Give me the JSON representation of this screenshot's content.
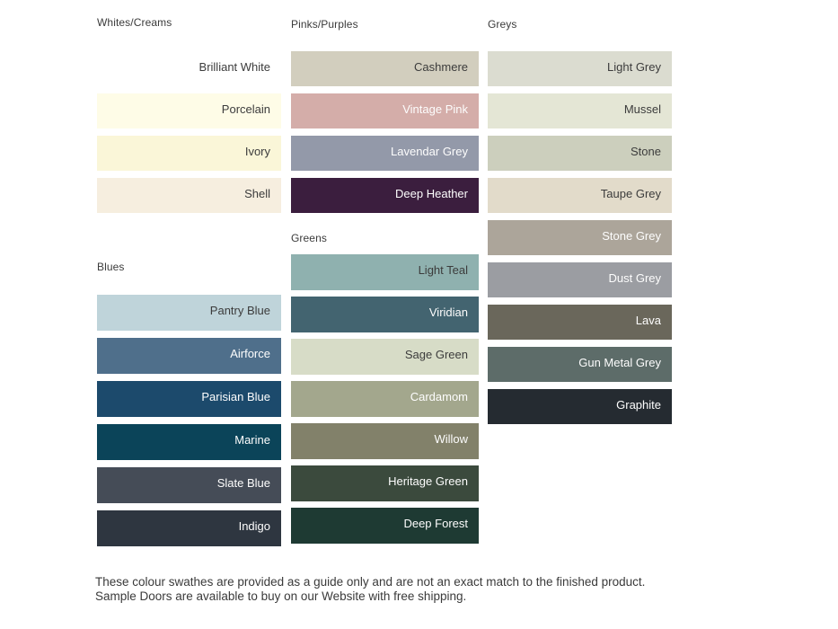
{
  "palette": {
    "background": "#ffffff",
    "label_dark": "#3c3c3c",
    "label_light": "#fdfdfd",
    "header_text": "#3b3b3b"
  },
  "sections": {
    "whites": {
      "title": "Whites/Creams",
      "swatches": [
        {
          "name": "Brilliant White",
          "color": "#ffffff",
          "text": "dark"
        },
        {
          "name": "Porcelain",
          "color": "#fefce7",
          "text": "dark"
        },
        {
          "name": "Ivory",
          "color": "#faf6d8",
          "text": "dark"
        },
        {
          "name": "Shell",
          "color": "#f6eedf",
          "text": "dark"
        }
      ]
    },
    "blues": {
      "title": "Blues",
      "swatches": [
        {
          "name": "Pantry Blue",
          "color": "#bfd4da",
          "text": "dark"
        },
        {
          "name": "Airforce",
          "color": "#4f6f8b",
          "text": "light"
        },
        {
          "name": "Parisian Blue",
          "color": "#1c4a6c",
          "text": "light"
        },
        {
          "name": "Marine",
          "color": "#0b4459",
          "text": "light"
        },
        {
          "name": "Slate Blue",
          "color": "#454c57",
          "text": "light"
        },
        {
          "name": "Indigo",
          "color": "#2e3640",
          "text": "light"
        }
      ]
    },
    "pinks": {
      "title": "Pinks/Purples",
      "swatches": [
        {
          "name": "Cashmere",
          "color": "#d2cebe",
          "text": "dark"
        },
        {
          "name": "Vintage Pink",
          "color": "#d4ada9",
          "text": "light"
        },
        {
          "name": "Lavendar Grey",
          "color": "#9399a9",
          "text": "light"
        },
        {
          "name": "Deep Heather",
          "color": "#3b1e3e",
          "text": "light"
        }
      ]
    },
    "greens": {
      "title": "Greens",
      "swatches": [
        {
          "name": "Light Teal",
          "color": "#8fb1af",
          "text": "dark"
        },
        {
          "name": "Viridian",
          "color": "#436470",
          "text": "light"
        },
        {
          "name": "Sage Green",
          "color": "#d7dcc7",
          "text": "dark"
        },
        {
          "name": "Cardamom",
          "color": "#a3a78d",
          "text": "light"
        },
        {
          "name": "Willow",
          "color": "#82816a",
          "text": "light"
        },
        {
          "name": "Heritage Green",
          "color": "#3b4a3d",
          "text": "light"
        },
        {
          "name": "Deep Forest",
          "color": "#1e3a33",
          "text": "light"
        }
      ]
    },
    "greys": {
      "title": "Greys",
      "swatches": [
        {
          "name": "Light Grey",
          "color": "#dbdcd0",
          "text": "dark"
        },
        {
          "name": "Mussel",
          "color": "#e4e6d5",
          "text": "dark"
        },
        {
          "name": "Stone",
          "color": "#cccfbd",
          "text": "dark"
        },
        {
          "name": "Taupe Grey",
          "color": "#e2dbca",
          "text": "dark"
        },
        {
          "name": "Stone Grey",
          "color": "#aca59a",
          "text": "light"
        },
        {
          "name": "Dust Grey",
          "color": "#9b9da2",
          "text": "light"
        },
        {
          "name": "Lava",
          "color": "#6a675b",
          "text": "light"
        },
        {
          "name": "Gun Metal Grey",
          "color": "#5d6c69",
          "text": "light"
        },
        {
          "name": "Graphite",
          "color": "#252b31",
          "text": "light"
        }
      ]
    }
  },
  "footer": {
    "note": "These colour swathes are provided as a guide only and are not an exact match to the finished product.  Sample Doors are available to buy on our Website with free shipping."
  }
}
